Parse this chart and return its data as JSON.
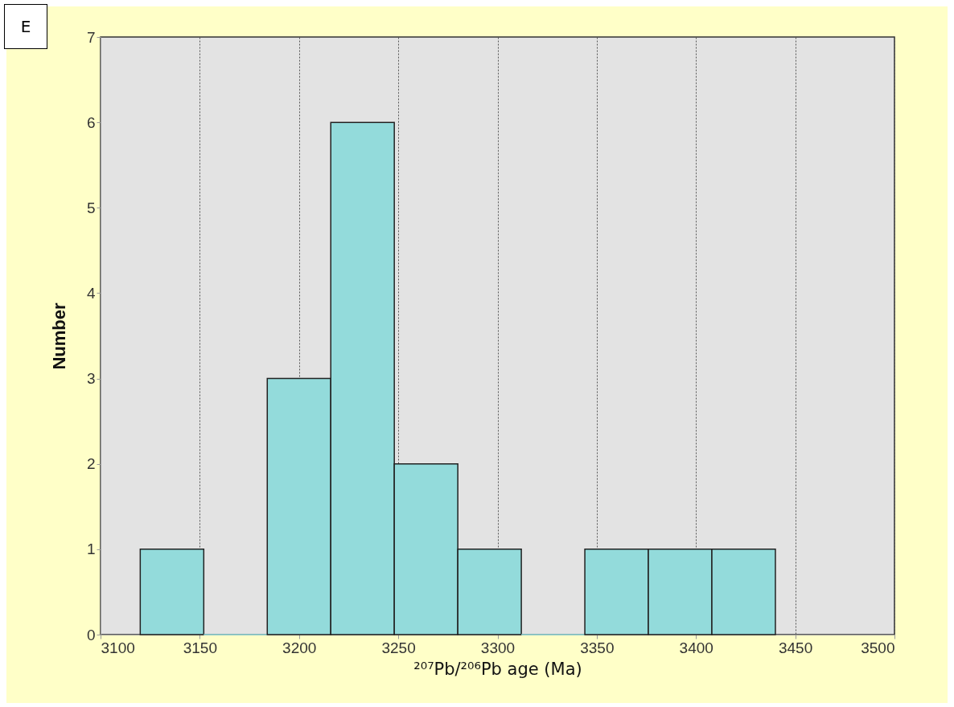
{
  "chart_data": {
    "type": "histogram",
    "xlabel": "²⁰⁷Pb/²⁰⁶Pb age (Ma)",
    "ylabel": "Number",
    "annotations": [
      "E"
    ],
    "bins": [
      3120,
      3152,
      3184,
      3216,
      3248,
      3280,
      3312,
      3344,
      3376,
      3408,
      3440
    ],
    "values": [
      1,
      0,
      3,
      6,
      2,
      1,
      0,
      1,
      1,
      1
    ],
    "color": "#93dbdb",
    "xlim": [
      3100,
      3500
    ],
    "xticks": [
      3100,
      3150,
      3200,
      3250,
      3300,
      3350,
      3400,
      3450,
      3500
    ],
    "ylim": [
      0,
      7
    ],
    "yticks": [
      0,
      1,
      2,
      3,
      4,
      5,
      6,
      7
    ],
    "grid": "x"
  }
}
